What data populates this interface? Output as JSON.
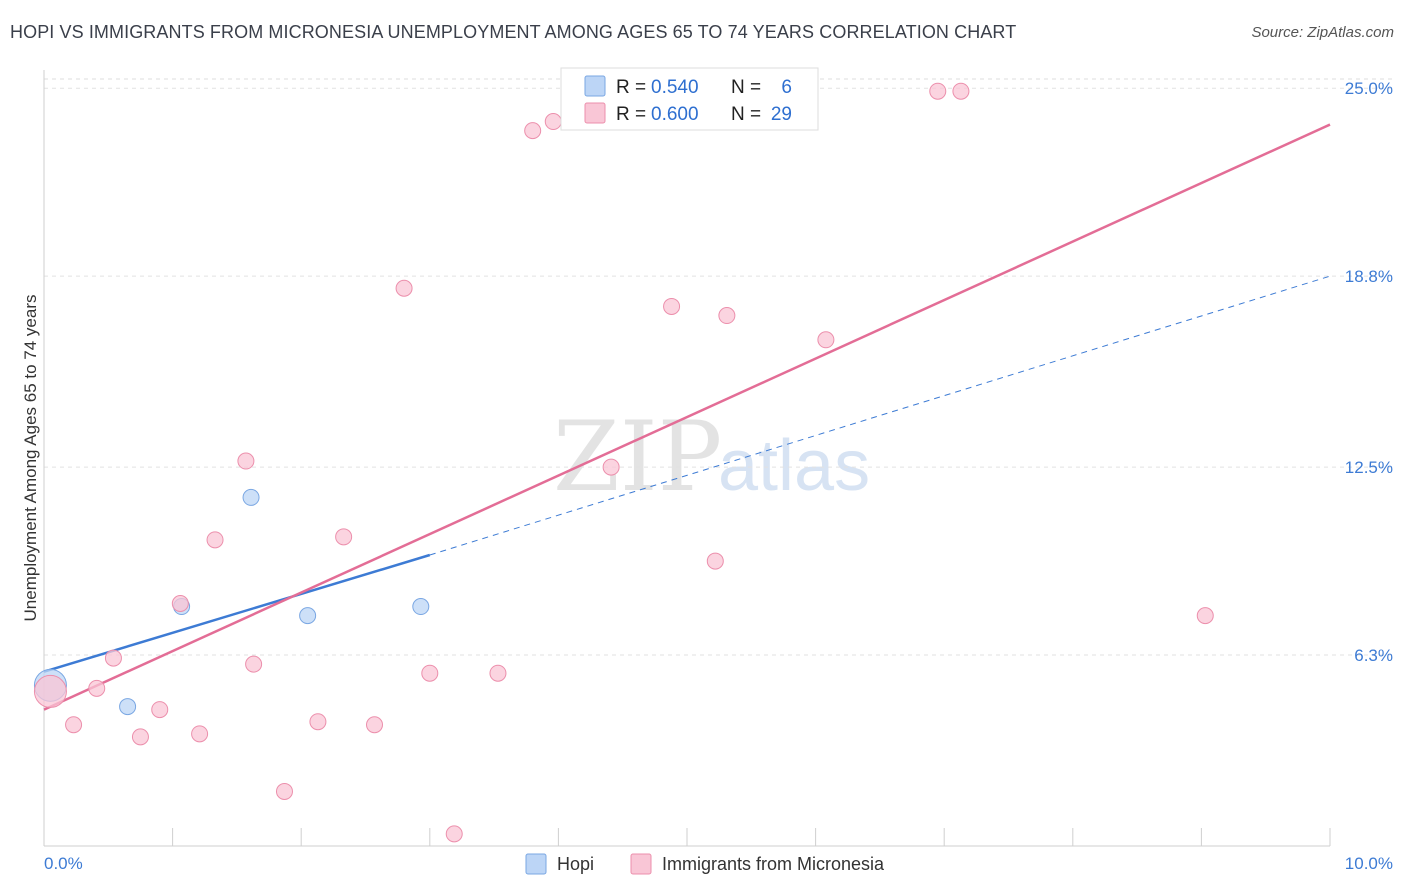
{
  "header": {
    "title": "HOPI VS IMMIGRANTS FROM MICRONESIA UNEMPLOYMENT AMONG AGES 65 TO 74 YEARS CORRELATION CHART",
    "source": "Source: ZipAtlas.com"
  },
  "watermark": {
    "zip": "ZIP",
    "atlas": "atlas"
  },
  "stats_legend": {
    "series": [
      {
        "name": "Hopi",
        "r_label": "R =",
        "r_value": "0.540",
        "n_label": "N =",
        "n_value": "6",
        "fill": "#bcd5f6",
        "stroke": "#7aa7e3"
      },
      {
        "name": "Immigrants from Micronesia",
        "r_label": "R =",
        "r_value": "0.600",
        "n_label": "N =",
        "n_value": "29",
        "fill": "#f9c6d6",
        "stroke": "#ec8fac"
      }
    ]
  },
  "chart_data": {
    "type": "scatter",
    "title": "HOPI VS IMMIGRANTS FROM MICRONESIA UNEMPLOYMENT AMONG AGES 65 TO 74 YEARS CORRELATION CHART",
    "xlabel": "",
    "ylabel": "Unemployment Among Ages 65 to 74 years",
    "xlim": [
      0,
      10
    ],
    "ylim": [
      0,
      25.6
    ],
    "x_tick_labels": [
      {
        "value": 0,
        "label": "0.0%"
      },
      {
        "value": 10,
        "label": "10.0%"
      }
    ],
    "y_tick_labels": [
      {
        "value": 6.3,
        "label": "6.3%"
      },
      {
        "value": 12.5,
        "label": "12.5%"
      },
      {
        "value": 18.8,
        "label": "18.8%"
      },
      {
        "value": 25.0,
        "label": "25.0%"
      }
    ],
    "x_minor_ticks": [
      0,
      1,
      2,
      3,
      4,
      5,
      6,
      7,
      8,
      9,
      10
    ],
    "legend_position": "bottom",
    "series": [
      {
        "name": "Hopi",
        "color": "#3d7bd4",
        "fill": "#bcd5f6",
        "stroke": "#7aa7e3",
        "points": [
          {
            "x": 0.05,
            "y": 5.3,
            "size": "large"
          },
          {
            "x": 0.65,
            "y": 4.6
          },
          {
            "x": 1.07,
            "y": 7.9
          },
          {
            "x": 1.61,
            "y": 11.5
          },
          {
            "x": 2.05,
            "y": 7.6
          },
          {
            "x": 2.93,
            "y": 7.9
          }
        ],
        "trend": {
          "x0": 0,
          "y0": 5.75,
          "x1": 3.0,
          "y1": 9.6,
          "dashed_to_x": 10,
          "dashed_to_y": 18.8
        }
      },
      {
        "name": "Immigrants from Micronesia",
        "color": "#e36d96",
        "fill": "#f9c6d6",
        "stroke": "#ec8fac",
        "points": [
          {
            "x": 0.05,
            "y": 5.1,
            "size": "large"
          },
          {
            "x": 0.23,
            "y": 4.0
          },
          {
            "x": 0.41,
            "y": 5.2
          },
          {
            "x": 0.54,
            "y": 6.2
          },
          {
            "x": 0.75,
            "y": 3.6
          },
          {
            "x": 0.9,
            "y": 4.5
          },
          {
            "x": 1.06,
            "y": 8.0
          },
          {
            "x": 1.21,
            "y": 3.7
          },
          {
            "x": 1.33,
            "y": 10.1
          },
          {
            "x": 1.57,
            "y": 12.7
          },
          {
            "x": 1.63,
            "y": 6.0
          },
          {
            "x": 1.87,
            "y": 1.8
          },
          {
            "x": 2.13,
            "y": 4.1
          },
          {
            "x": 2.33,
            "y": 10.2
          },
          {
            "x": 2.57,
            "y": 4.0
          },
          {
            "x": 2.8,
            "y": 18.4
          },
          {
            "x": 3.0,
            "y": 5.7
          },
          {
            "x": 3.19,
            "y": 0.4
          },
          {
            "x": 3.53,
            "y": 5.7
          },
          {
            "x": 3.8,
            "y": 23.6
          },
          {
            "x": 3.96,
            "y": 23.9
          },
          {
            "x": 4.41,
            "y": 12.5
          },
          {
            "x": 4.88,
            "y": 17.8
          },
          {
            "x": 5.22,
            "y": 9.4
          },
          {
            "x": 5.31,
            "y": 17.5
          },
          {
            "x": 6.08,
            "y": 16.7
          },
          {
            "x": 6.95,
            "y": 24.9
          },
          {
            "x": 7.13,
            "y": 24.9
          },
          {
            "x": 9.03,
            "y": 7.6
          }
        ],
        "trend": {
          "x0": 0,
          "y0": 4.5,
          "x1": 10,
          "y1": 23.8
        }
      }
    ]
  }
}
